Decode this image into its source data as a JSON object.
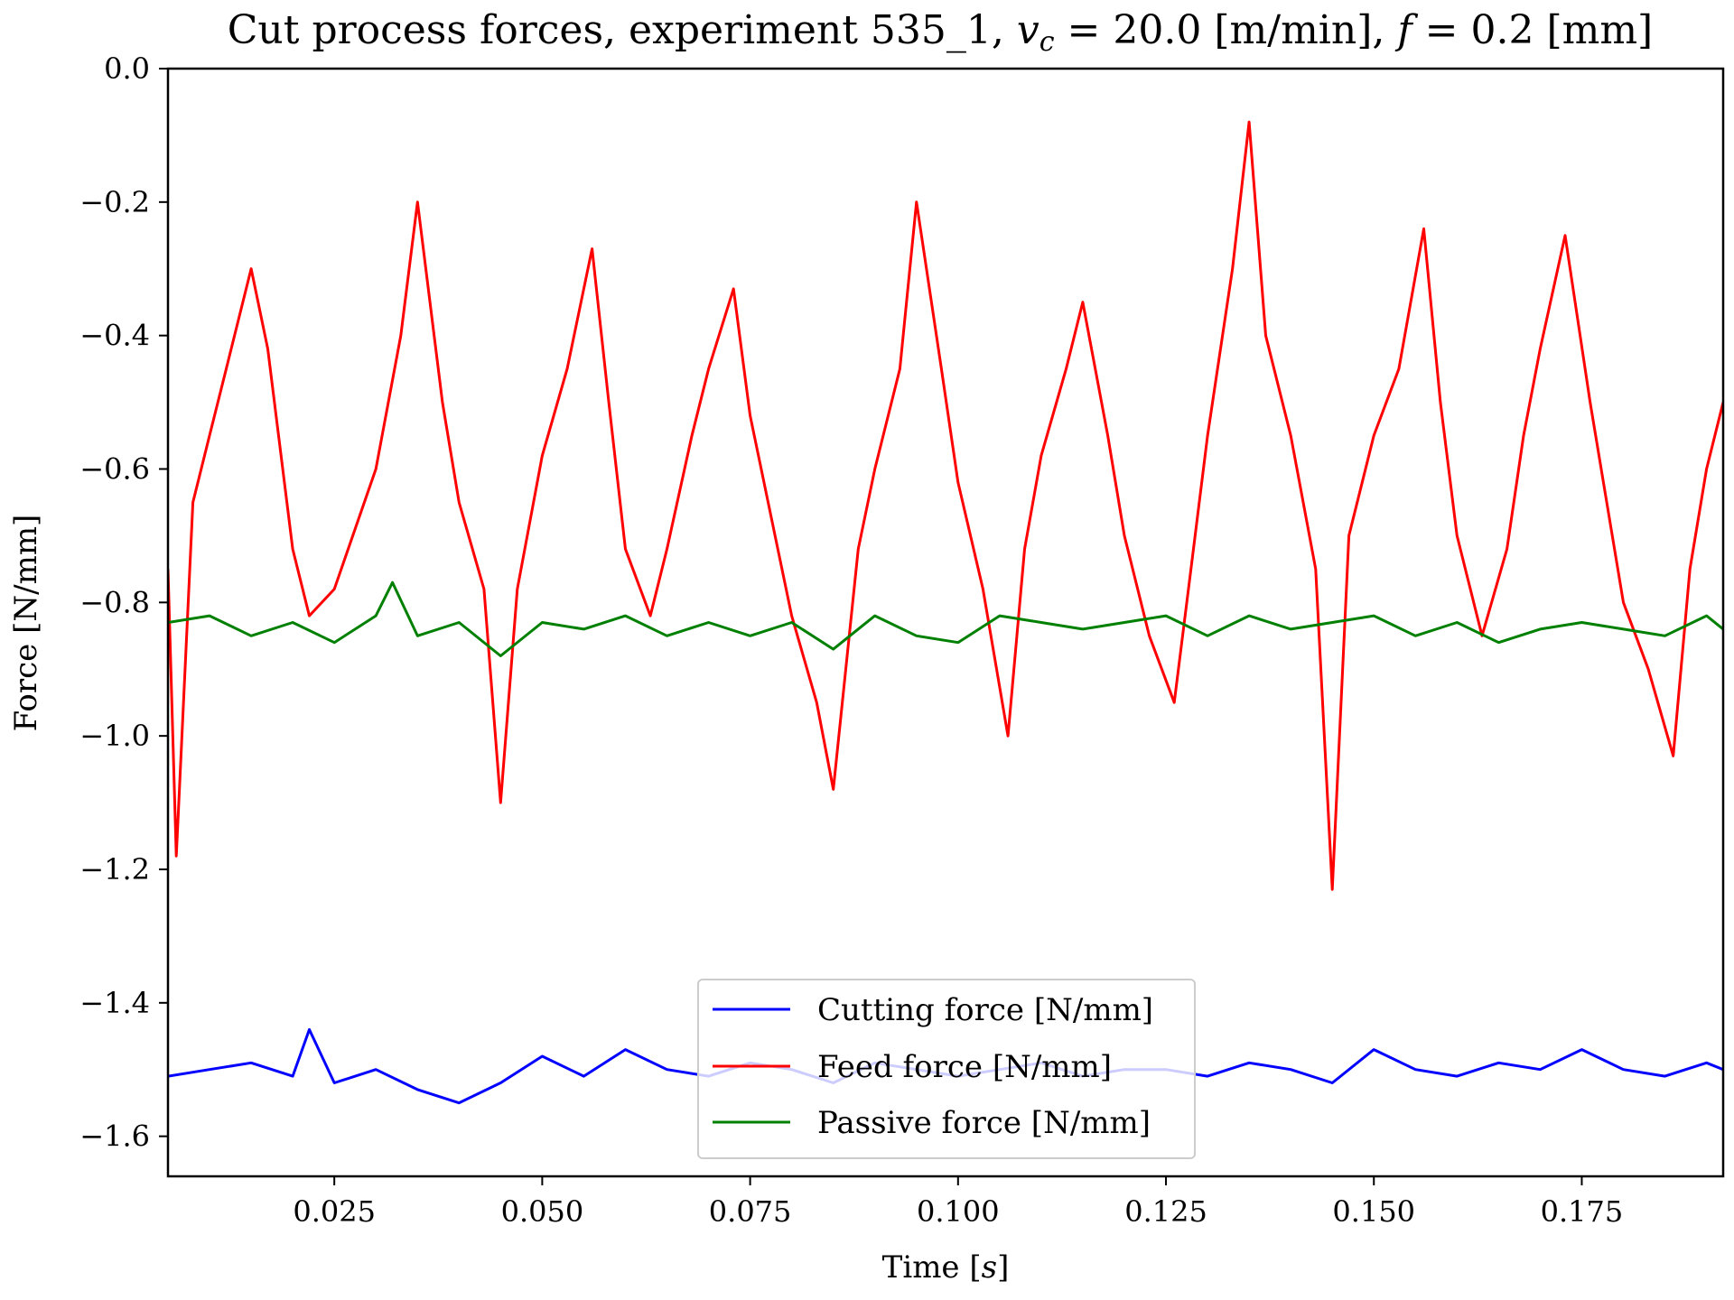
{
  "chart_data": {
    "type": "line",
    "title": "Cut process forces, experiment 535_1, v_c = 20.0 [m/min], f = 0.2 [mm]",
    "title_parts": {
      "prefix": "Cut process forces, experiment 535_1, ",
      "var1": "v",
      "var1_sub": "c",
      "mid": " = 20.0 [m/min], ",
      "var2": "f",
      "suffix": " = 0.2 [mm]"
    },
    "xlabel": "Time [s]",
    "xlabel_parts": {
      "prefix": "Time [",
      "var": "s",
      "suffix": "]"
    },
    "ylabel": "Force [N/mm]",
    "xlim": [
      0.005,
      0.192
    ],
    "ylim": [
      -1.66,
      0.0
    ],
    "xticks": [
      0.025,
      0.05,
      0.075,
      0.1,
      0.125,
      0.15,
      0.175
    ],
    "xtick_labels": [
      "0.025",
      "0.050",
      "0.075",
      "0.100",
      "0.125",
      "0.150",
      "0.175"
    ],
    "yticks": [
      0.0,
      -0.2,
      -0.4,
      -0.6,
      -0.8,
      -1.0,
      -1.2,
      -1.4,
      -1.6
    ],
    "ytick_labels": [
      "0.0",
      "−0.2",
      "−0.4",
      "−0.6",
      "−0.8",
      "−1.0",
      "−1.2",
      "−1.4",
      "−1.6"
    ],
    "grid": false,
    "legend_position": "lower-center",
    "series": [
      {
        "name": "Cutting force [N/mm]",
        "color": "#0000ff",
        "x": [
          0.005,
          0.01,
          0.015,
          0.02,
          0.022,
          0.025,
          0.03,
          0.035,
          0.04,
          0.045,
          0.05,
          0.055,
          0.06,
          0.065,
          0.07,
          0.075,
          0.08,
          0.085,
          0.09,
          0.095,
          0.1,
          0.105,
          0.11,
          0.115,
          0.12,
          0.125,
          0.13,
          0.135,
          0.14,
          0.145,
          0.15,
          0.155,
          0.16,
          0.165,
          0.17,
          0.175,
          0.18,
          0.185,
          0.19,
          0.192
        ],
        "y": [
          -1.51,
          -1.5,
          -1.49,
          -1.51,
          -1.44,
          -1.52,
          -1.5,
          -1.53,
          -1.55,
          -1.52,
          -1.48,
          -1.51,
          -1.47,
          -1.5,
          -1.51,
          -1.49,
          -1.5,
          -1.52,
          -1.49,
          -1.5,
          -1.51,
          -1.5,
          -1.49,
          -1.51,
          -1.5,
          -1.5,
          -1.51,
          -1.49,
          -1.5,
          -1.52,
          -1.47,
          -1.5,
          -1.51,
          -1.49,
          -1.5,
          -1.47,
          -1.5,
          -1.51,
          -1.49,
          -1.5
        ]
      },
      {
        "name": "Feed force [N/mm]",
        "color": "#ff0000",
        "x": [
          0.005,
          0.006,
          0.008,
          0.01,
          0.012,
          0.015,
          0.017,
          0.02,
          0.022,
          0.025,
          0.03,
          0.033,
          0.035,
          0.038,
          0.04,
          0.043,
          0.045,
          0.047,
          0.05,
          0.053,
          0.056,
          0.058,
          0.06,
          0.063,
          0.065,
          0.068,
          0.07,
          0.073,
          0.075,
          0.078,
          0.08,
          0.083,
          0.085,
          0.088,
          0.09,
          0.093,
          0.095,
          0.098,
          0.1,
          0.103,
          0.106,
          0.108,
          0.11,
          0.113,
          0.115,
          0.118,
          0.12,
          0.123,
          0.126,
          0.128,
          0.13,
          0.133,
          0.135,
          0.137,
          0.14,
          0.143,
          0.145,
          0.147,
          0.15,
          0.153,
          0.156,
          0.158,
          0.16,
          0.163,
          0.166,
          0.168,
          0.17,
          0.173,
          0.176,
          0.178,
          0.18,
          0.183,
          0.186,
          0.188,
          0.19,
          0.192
        ],
        "y": [
          -0.75,
          -1.18,
          -0.65,
          -0.55,
          -0.45,
          -0.3,
          -0.42,
          -0.72,
          -0.82,
          -0.78,
          -0.6,
          -0.4,
          -0.2,
          -0.5,
          -0.65,
          -0.78,
          -1.1,
          -0.78,
          -0.58,
          -0.45,
          -0.27,
          -0.5,
          -0.72,
          -0.82,
          -0.72,
          -0.55,
          -0.45,
          -0.33,
          -0.52,
          -0.7,
          -0.82,
          -0.95,
          -1.08,
          -0.72,
          -0.6,
          -0.45,
          -0.2,
          -0.45,
          -0.62,
          -0.78,
          -1.0,
          -0.72,
          -0.58,
          -0.45,
          -0.35,
          -0.55,
          -0.7,
          -0.85,
          -0.95,
          -0.75,
          -0.55,
          -0.3,
          -0.08,
          -0.4,
          -0.55,
          -0.75,
          -1.23,
          -0.7,
          -0.55,
          -0.45,
          -0.24,
          -0.5,
          -0.7,
          -0.85,
          -0.72,
          -0.55,
          -0.42,
          -0.25,
          -0.5,
          -0.65,
          -0.8,
          -0.9,
          -1.03,
          -0.75,
          -0.6,
          -0.5
        ]
      },
      {
        "name": "Passive force [N/mm]",
        "color": "#008000",
        "x": [
          0.005,
          0.01,
          0.015,
          0.02,
          0.025,
          0.03,
          0.032,
          0.035,
          0.04,
          0.045,
          0.05,
          0.055,
          0.06,
          0.065,
          0.07,
          0.075,
          0.08,
          0.085,
          0.09,
          0.095,
          0.1,
          0.105,
          0.11,
          0.115,
          0.12,
          0.125,
          0.13,
          0.135,
          0.14,
          0.145,
          0.15,
          0.155,
          0.16,
          0.165,
          0.17,
          0.175,
          0.18,
          0.185,
          0.19,
          0.192
        ],
        "y": [
          -0.83,
          -0.82,
          -0.85,
          -0.83,
          -0.86,
          -0.82,
          -0.77,
          -0.85,
          -0.83,
          -0.88,
          -0.83,
          -0.84,
          -0.82,
          -0.85,
          -0.83,
          -0.85,
          -0.83,
          -0.87,
          -0.82,
          -0.85,
          -0.86,
          -0.82,
          -0.83,
          -0.84,
          -0.83,
          -0.82,
          -0.85,
          -0.82,
          -0.84,
          -0.83,
          -0.82,
          -0.85,
          -0.83,
          -0.86,
          -0.84,
          -0.83,
          -0.84,
          -0.85,
          -0.82,
          -0.84
        ]
      }
    ]
  }
}
